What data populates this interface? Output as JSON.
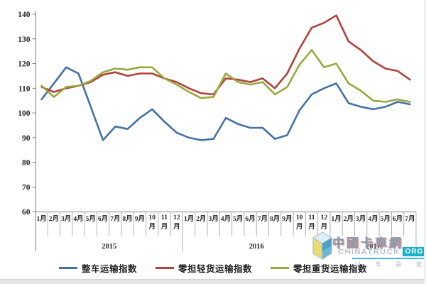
{
  "chart_data": {
    "type": "line",
    "title": "",
    "ylabel": "",
    "xlabel": "",
    "ylim": [
      60,
      140
    ],
    "y_ticks": [
      "140",
      "130",
      "120",
      "110",
      "100",
      "90",
      "80",
      "70",
      "60"
    ],
    "grid": false,
    "legend_position": "bottom",
    "year_groups": [
      {
        "year": "2015",
        "months": [
          "1月",
          "2月",
          "3月",
          "4月",
          "5月",
          "6月",
          "7月",
          "8月",
          "9月",
          "10月",
          "11月",
          "12月"
        ]
      },
      {
        "year": "2016",
        "months": [
          "1月",
          "2月",
          "3月",
          "4月",
          "5月",
          "6月",
          "7月",
          "8月",
          "9月",
          "10月",
          "11月",
          "12月"
        ]
      },
      {
        "year": "2017",
        "months": [
          "1月",
          "2月",
          "3月",
          "4月",
          "5月",
          "6月",
          "7月"
        ]
      }
    ],
    "series": [
      {
        "name": "整车运输指数",
        "color": "#4471a5",
        "values": [
          105.5,
          112,
          118.5,
          116,
          102.5,
          89,
          94.5,
          93.5,
          98,
          101.5,
          96.5,
          92,
          90,
          89,
          89.5,
          98,
          95.5,
          94,
          94,
          89.5,
          91,
          101,
          107.5,
          110,
          112,
          104,
          102.5,
          101.5,
          102.5,
          104.5,
          103.5
        ]
      },
      {
        "name": "零担轻货运输指数",
        "color": "#b0413d",
        "values": [
          110.5,
          108.5,
          110,
          111,
          112.5,
          115.5,
          116.5,
          115,
          116,
          116,
          114,
          112.5,
          110,
          108,
          107.5,
          114,
          113.5,
          112.5,
          114,
          110,
          116,
          126,
          134.5,
          136.5,
          139.5,
          129,
          125.5,
          121,
          118,
          117,
          113.5
        ]
      },
      {
        "name": "零担重货运输指数",
        "color": "#98a83e",
        "values": [
          111,
          106.5,
          110.5,
          111,
          113,
          116.5,
          118,
          117.5,
          118.5,
          118.5,
          114,
          111.5,
          108.5,
          106,
          106.5,
          116,
          112.5,
          111.5,
          112.5,
          107.5,
          110.5,
          119.5,
          125.5,
          118.5,
          120,
          112,
          109,
          105,
          104.5,
          105.5,
          104.5
        ]
      }
    ],
    "axis_color": "#808080",
    "category_line_color": "#b3b3b3"
  },
  "watermark": {
    "title": "中國卡車網",
    "site": "CHINATRUCK",
    "site_suffix": "ORG",
    "slogan": "以车会友",
    "accent_color": "#17b2ca"
  }
}
